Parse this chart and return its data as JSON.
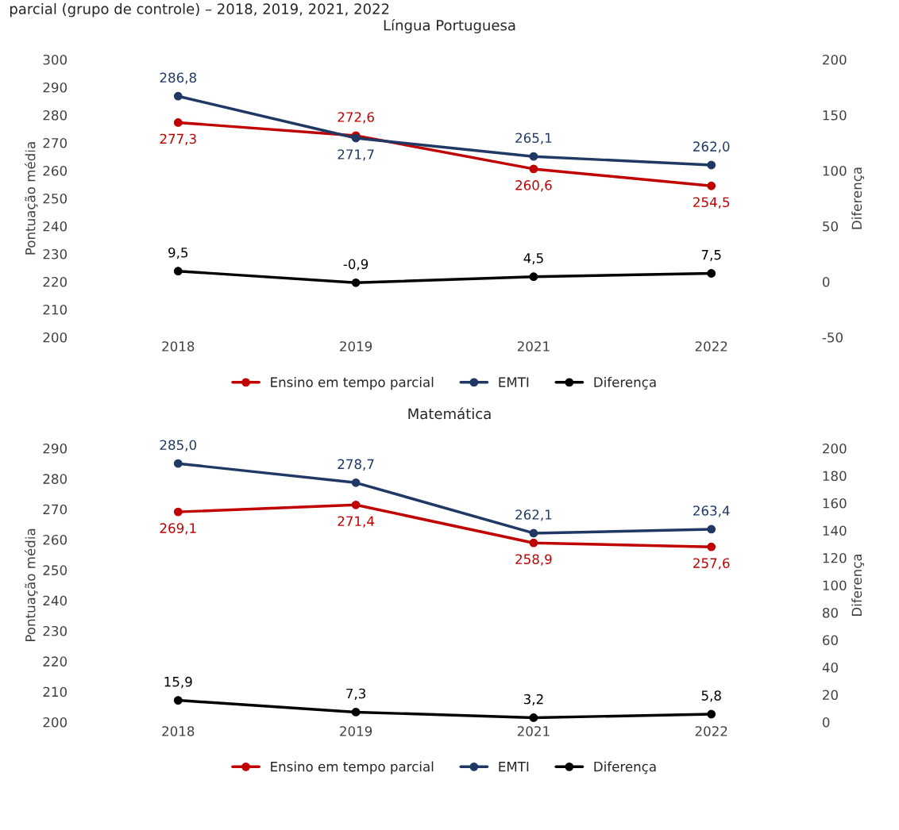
{
  "chart_data": [
    {
      "type": "line",
      "title": "Língua Portuguesa",
      "annotations": [
        "parcial (grupo de controle) – 2018, 2019, 2021, 2022"
      ],
      "ylabel": "Pontuação média",
      "y2label": "Diferença",
      "categories": [
        "2018",
        "2019",
        "2021",
        "2022"
      ],
      "ylim": [
        200,
        300
      ],
      "yticks": [
        200,
        210,
        220,
        230,
        240,
        250,
        260,
        270,
        280,
        290,
        300
      ],
      "y2lim": [
        -50,
        200
      ],
      "y2ticks": [
        -50,
        0,
        50,
        100,
        150,
        200
      ],
      "marker": "circle",
      "legend": "bottom",
      "grid": false,
      "series": [
        {
          "name": "Ensino em tempo parcial",
          "color": "#c00000",
          "values": [
            277.3,
            272.6,
            260.6,
            254.5
          ],
          "value_labels": [
            "277,3",
            "272,6",
            "260,6",
            "254,5"
          ]
        },
        {
          "name": "EMTI",
          "color": "#203864",
          "values": [
            286.8,
            271.7,
            265.1,
            262.0
          ],
          "value_labels": [
            "286,8",
            "271,7",
            "265,1",
            "262,0"
          ]
        },
        {
          "name": "Diferença",
          "color": "#000000",
          "axis": "y2",
          "values": [
            9.5,
            -0.9,
            4.5,
            7.5
          ],
          "value_labels": [
            "9,5",
            "-0,9",
            "4,5",
            "7,5"
          ]
        }
      ]
    },
    {
      "type": "line",
      "title": "Matemática",
      "ylabel": "Pontuação média",
      "y2label": "Diferença",
      "categories": [
        "2018",
        "2019",
        "2021",
        "2022"
      ],
      "ylim": [
        200,
        290
      ],
      "yticks": [
        200,
        210,
        220,
        230,
        240,
        250,
        260,
        270,
        280,
        290
      ],
      "y2lim": [
        0,
        200
      ],
      "y2ticks": [
        0,
        20,
        40,
        60,
        80,
        100,
        120,
        140,
        160,
        180,
        200
      ],
      "marker": "circle",
      "legend": "bottom",
      "grid": false,
      "series": [
        {
          "name": "Ensino em tempo parcial",
          "color": "#c00000",
          "values": [
            269.1,
            271.4,
            258.9,
            257.6
          ],
          "value_labels": [
            "269,1",
            "271,4",
            "258,9",
            "257,6"
          ]
        },
        {
          "name": "EMTI",
          "color": "#203864",
          "values": [
            285.0,
            278.7,
            262.1,
            263.4
          ],
          "value_labels": [
            "285,0",
            "278,7",
            "262,1",
            "263,4"
          ]
        },
        {
          "name": "Diferença",
          "color": "#000000",
          "axis": "y2",
          "values": [
            15.9,
            7.3,
            3.2,
            5.8
          ],
          "value_labels": [
            "15,9",
            "7,3",
            "3,2",
            "5,8"
          ]
        }
      ]
    }
  ]
}
